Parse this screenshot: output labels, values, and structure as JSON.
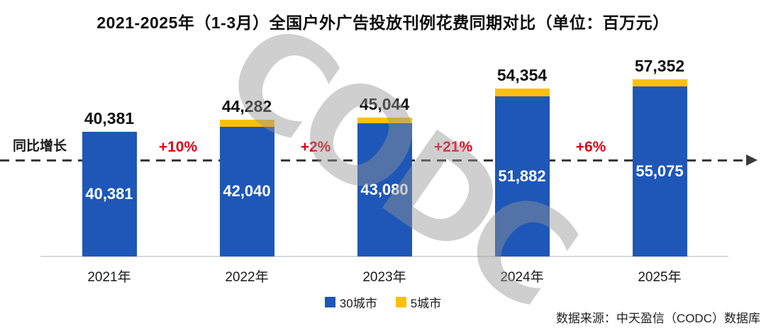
{
  "title": "2021-2025年（1-3月）全国户外广告投放刊例花费同期对比（单位：百万元）",
  "yoy_label": "同比增长",
  "watermark_text": "CODC",
  "source": "数据来源：中天盈信（CODC）数据库",
  "colors": {
    "blue": "#1e57b8",
    "yellow": "#ffc000",
    "red": "#e0001b",
    "axis_gray": "#d9d9d9",
    "dash_gray": "#3a3a3a",
    "watermark_gray": "#949494"
  },
  "chart_data": {
    "type": "bar",
    "stacked": true,
    "title": "2021-2025年（1-3月）全国户外广告投放刊例花费同期对比（单位：百万元）",
    "unit": "百万元",
    "categories": [
      "2021年",
      "2022年",
      "2023年",
      "2024年",
      "2025年"
    ],
    "series": [
      {
        "name": "30城市",
        "color": "#1e57b8",
        "values": [
          40381,
          42040,
          43080,
          51882,
          55075
        ]
      },
      {
        "name": "5城市",
        "color": "#ffc000",
        "values": [
          0,
          2242,
          1964,
          2472,
          2277
        ]
      }
    ],
    "totals": [
      40381,
      44282,
      45044,
      54354,
      57352
    ],
    "total_labels": [
      "40,381",
      "44,282",
      "45,044",
      "54,354",
      "57,352"
    ],
    "inner_labels": [
      "40,381",
      "42,040",
      "43,080",
      "51,882",
      "55,075"
    ],
    "growth_labels": [
      "+10%",
      "+2%",
      "+21%",
      "+6%"
    ],
    "baseline_label": "同比增长",
    "legend_position": "bottom-center",
    "grid": false,
    "ylim": [
      0,
      60000
    ]
  }
}
